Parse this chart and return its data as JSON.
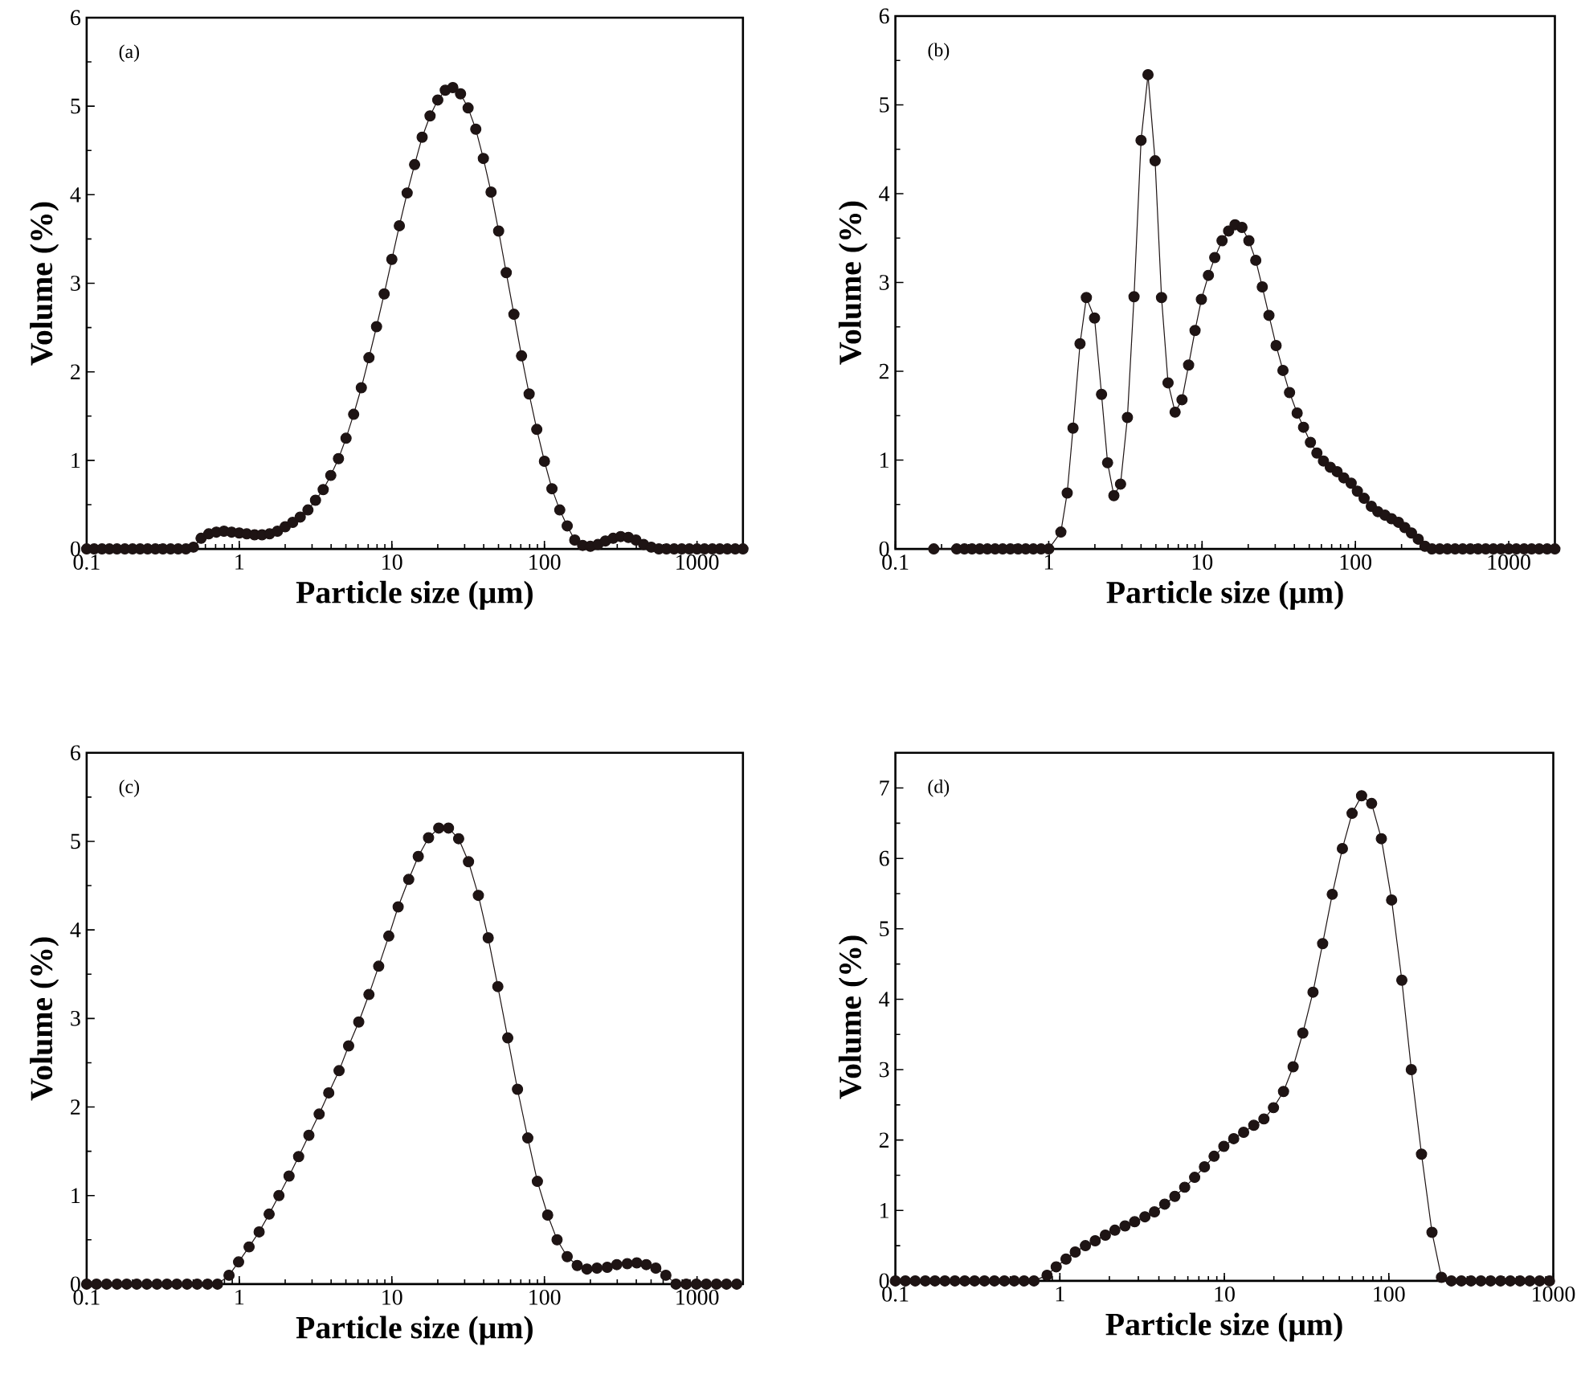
{
  "chart_data": [
    {
      "type": "line",
      "annotations": [
        "(a)"
      ],
      "xlabel": "Particle size (μm)",
      "ylabel": "Volume (%)",
      "log": "x",
      "marker": "circle",
      "line_style": "solid",
      "color": "#1e1414",
      "xlim": [
        0.1,
        2000
      ],
      "ylim": [
        0,
        6
      ],
      "xticks": [
        0.1,
        1,
        10,
        100,
        1000
      ],
      "yticks": [
        0,
        1,
        2,
        3,
        4,
        5,
        6
      ],
      "x": [
        0.1,
        0.112,
        0.126,
        0.141,
        0.158,
        0.178,
        0.2,
        0.224,
        0.251,
        0.282,
        0.316,
        0.355,
        0.398,
        0.447,
        0.501,
        0.562,
        0.631,
        0.708,
        0.794,
        0.891,
        1,
        1.12,
        1.26,
        1.41,
        1.58,
        1.78,
        2,
        2.24,
        2.51,
        2.82,
        3.16,
        3.55,
        3.98,
        4.47,
        5.01,
        5.62,
        6.31,
        7.08,
        7.94,
        8.91,
        10,
        11.2,
        12.6,
        14.1,
        15.8,
        17.8,
        20,
        22.4,
        25.1,
        28.2,
        31.6,
        35.5,
        39.8,
        44.7,
        50.1,
        56.2,
        63.1,
        70.8,
        79.4,
        89.1,
        100,
        112,
        126,
        141,
        158,
        178,
        200,
        224,
        251,
        282,
        316,
        355,
        398,
        447,
        501,
        562,
        631,
        708,
        794,
        891,
        1000,
        1120,
        1260,
        1410,
        1580,
        1780,
        2000
      ],
      "values": [
        0,
        0,
        0,
        0,
        0,
        0,
        0,
        0,
        0,
        0,
        0,
        0,
        0,
        0,
        0.02,
        0.12,
        0.17,
        0.19,
        0.2,
        0.19,
        0.18,
        0.17,
        0.16,
        0.16,
        0.17,
        0.2,
        0.25,
        0.3,
        0.36,
        0.44,
        0.55,
        0.67,
        0.83,
        1.02,
        1.25,
        1.52,
        1.82,
        2.16,
        2.51,
        2.88,
        3.27,
        3.65,
        4.02,
        4.34,
        4.65,
        4.89,
        5.07,
        5.18,
        5.21,
        5.14,
        4.98,
        4.74,
        4.41,
        4.03,
        3.59,
        3.12,
        2.65,
        2.18,
        1.75,
        1.35,
        0.99,
        0.68,
        0.44,
        0.26,
        0.1,
        0.04,
        0.03,
        0.05,
        0.09,
        0.12,
        0.14,
        0.13,
        0.1,
        0.05,
        0.02,
        0,
        0,
        0,
        0,
        0,
        0,
        0,
        0,
        0,
        0,
        0,
        0
      ]
    },
    {
      "type": "line",
      "annotations": [
        "(b)"
      ],
      "xlabel": "Particle size (μm)",
      "ylabel": "Volume (%)",
      "log": "x",
      "marker": "circle",
      "line_style": "solid",
      "color": "#1e1414",
      "xlim": [
        0.1,
        2000
      ],
      "ylim": [
        0,
        6
      ],
      "xticks": [
        0.1,
        1,
        10,
        100,
        1000
      ],
      "yticks": [
        0,
        1,
        2,
        3,
        4,
        5,
        6
      ],
      "x": [
        0.178,
        0.251,
        0.282,
        0.316,
        0.355,
        0.398,
        0.447,
        0.501,
        0.562,
        0.631,
        0.708,
        0.794,
        0.891,
        1.0,
        1.2,
        1.32,
        1.44,
        1.6,
        1.76,
        1.99,
        2.21,
        2.42,
        2.66,
        2.94,
        3.26,
        3.6,
        4.0,
        4.44,
        4.94,
        5.44,
        6.0,
        6.67,
        7.4,
        8.17,
        9.0,
        9.9,
        11.0,
        12.1,
        13.5,
        14.9,
        16.4,
        18.2,
        20.2,
        22.4,
        24.7,
        27.3,
        30.4,
        33.7,
        37.2,
        41.7,
        45.9,
        50.9,
        56.1,
        61.9,
        68.6,
        76,
        84,
        93.8,
        103,
        114,
        127,
        140,
        156,
        172,
        191,
        210,
        232,
        257,
        284,
        316,
        355,
        398,
        447,
        501,
        562,
        631,
        708,
        794,
        891,
        1000,
        1120,
        1260,
        1410,
        1580,
        1780,
        2000
      ],
      "values": [
        0,
        0,
        0,
        0,
        0,
        0,
        0,
        0,
        0,
        0,
        0,
        0,
        0,
        0,
        0.19,
        0.63,
        1.36,
        2.31,
        2.83,
        2.6,
        1.74,
        0.97,
        0.6,
        0.73,
        1.48,
        2.84,
        4.6,
        5.34,
        4.37,
        2.83,
        1.87,
        1.54,
        1.68,
        2.07,
        2.46,
        2.81,
        3.08,
        3.28,
        3.47,
        3.58,
        3.65,
        3.62,
        3.47,
        3.25,
        2.95,
        2.63,
        2.29,
        2.01,
        1.76,
        1.53,
        1.37,
        1.2,
        1.08,
        0.99,
        0.92,
        0.87,
        0.8,
        0.74,
        0.65,
        0.57,
        0.48,
        0.42,
        0.38,
        0.34,
        0.3,
        0.24,
        0.18,
        0.11,
        0.03,
        0,
        0,
        0,
        0,
        0,
        0,
        0,
        0,
        0,
        0,
        0,
        0,
        0,
        0,
        0,
        0,
        0
      ]
    },
    {
      "type": "line",
      "annotations": [
        "(c)"
      ],
      "xlabel": "Particle size (μm)",
      "ylabel": "Volume (%)",
      "log": "x",
      "marker": "circle",
      "line_style": "solid",
      "color": "#1e1414",
      "xlim": [
        0.1,
        2000
      ],
      "ylim": [
        0,
        6
      ],
      "xticks": [
        0.1,
        1,
        10,
        100,
        1000
      ],
      "yticks": [
        0,
        1,
        2,
        3,
        4,
        5,
        6
      ],
      "x": [
        0.1,
        0.116,
        0.135,
        0.158,
        0.183,
        0.213,
        0.248,
        0.289,
        0.336,
        0.39,
        0.455,
        0.53,
        0.62,
        0.72,
        0.857,
        0.99,
        1.16,
        1.35,
        1.57,
        1.82,
        2.12,
        2.45,
        2.86,
        3.34,
        3.86,
        4.51,
        5.21,
        6.07,
        7.08,
        8.2,
        9.55,
        11.0,
        12.9,
        14.9,
        17.4,
        20.3,
        23.5,
        27.4,
        31.8,
        36.9,
        42.8,
        49.5,
        57.5,
        66.6,
        77.8,
        89.9,
        105,
        121,
        141,
        164,
        190,
        221,
        258,
        298,
        349,
        403,
        465,
        537,
        625,
        728,
        850,
        990,
        1150,
        1340,
        1560,
        1820
      ],
      "values": [
        0,
        0,
        0,
        0,
        0,
        0,
        0,
        0,
        0,
        0,
        0,
        0,
        0,
        0,
        0.1,
        0.25,
        0.42,
        0.59,
        0.79,
        1.0,
        1.22,
        1.44,
        1.68,
        1.92,
        2.16,
        2.41,
        2.69,
        2.96,
        3.27,
        3.59,
        3.93,
        4.26,
        4.57,
        4.83,
        5.04,
        5.15,
        5.15,
        5.03,
        4.77,
        4.39,
        3.91,
        3.36,
        2.78,
        2.2,
        1.65,
        1.16,
        0.78,
        0.5,
        0.31,
        0.21,
        0.17,
        0.18,
        0.19,
        0.22,
        0.23,
        0.24,
        0.22,
        0.18,
        0.1,
        0,
        0,
        0,
        0,
        0,
        0,
        0
      ]
    },
    {
      "type": "line",
      "annotations": [
        "(d)"
      ],
      "xlabel": "Particle size (μm)",
      "ylabel": "Volume (%)",
      "log": "x",
      "marker": "circle",
      "line_style": "solid",
      "color": "#1e1414",
      "xlim": [
        0.1,
        1000
      ],
      "ylim": [
        0,
        7.5
      ],
      "xticks": [
        0.1,
        1,
        10,
        100,
        1000
      ],
      "yticks": [
        0,
        1,
        2,
        3,
        4,
        5,
        6,
        7
      ],
      "x": [
        0.1,
        0.115,
        0.132,
        0.152,
        0.174,
        0.2,
        0.23,
        0.264,
        0.303,
        0.348,
        0.4,
        0.46,
        0.528,
        0.606,
        0.696,
        0.836,
        0.95,
        1.09,
        1.24,
        1.43,
        1.64,
        1.89,
        2.16,
        2.49,
        2.85,
        3.29,
        3.76,
        4.34,
        5.0,
        5.74,
        6.6,
        7.57,
        8.66,
        9.93,
        11.4,
        13.1,
        15.1,
        17.4,
        19.9,
        22.9,
        26.2,
        30.0,
        34.6,
        39.6,
        45.3,
        52.2,
        59.8,
        68.3,
        78.6,
        90.1,
        104,
        120,
        137,
        158,
        183,
        209,
        240,
        276,
        316,
        363,
        416,
        478,
        548,
        628,
        720,
        826,
        948
      ],
      "values": [
        0,
        0,
        0,
        0,
        0,
        0,
        0,
        0,
        0,
        0,
        0,
        0,
        0,
        0,
        0,
        0.08,
        0.2,
        0.31,
        0.41,
        0.5,
        0.57,
        0.65,
        0.72,
        0.78,
        0.84,
        0.91,
        0.98,
        1.09,
        1.2,
        1.33,
        1.47,
        1.62,
        1.77,
        1.91,
        2.02,
        2.11,
        2.21,
        2.3,
        2.46,
        2.69,
        3.04,
        3.52,
        4.1,
        4.79,
        5.49,
        6.14,
        6.64,
        6.89,
        6.78,
        6.28,
        5.41,
        4.27,
        3.0,
        1.8,
        0.69,
        0.05,
        0,
        0,
        0,
        0,
        0,
        0,
        0,
        0,
        0,
        0,
        0
      ]
    }
  ]
}
